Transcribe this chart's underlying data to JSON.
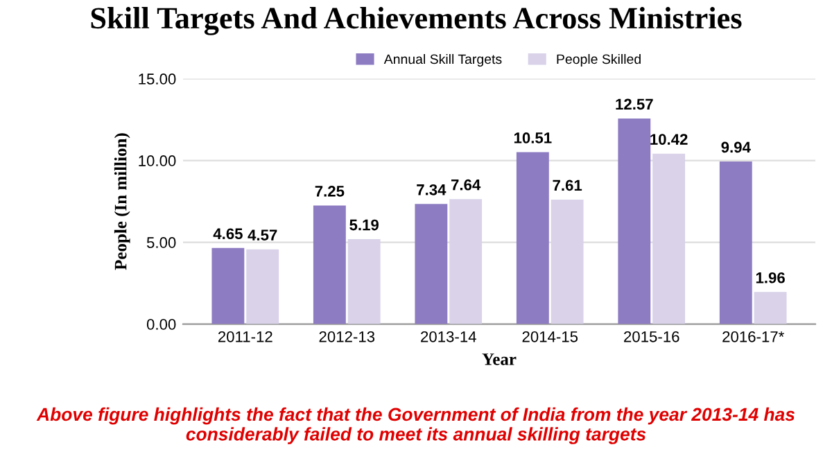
{
  "chart_data": {
    "type": "bar",
    "title": "Skill Targets And Achievements Across Ministries",
    "xlabel": "Year",
    "ylabel": "People (In million)",
    "categories": [
      "2011-12",
      "2012-13",
      "2013-14",
      "2014-15",
      "2015-16",
      "2016-17*"
    ],
    "series": [
      {
        "name": "Annual Skill Targets",
        "color": "#8e7cc3",
        "values": [
          4.65,
          7.25,
          7.34,
          10.51,
          12.57,
          9.94
        ]
      },
      {
        "name": "People Skilled",
        "color": "#d9d2e9",
        "values": [
          4.57,
          5.19,
          7.64,
          7.61,
          10.42,
          1.96
        ]
      }
    ],
    "ylim": [
      0,
      15
    ],
    "yticks": [
      {
        "value": 0,
        "label": "0.00"
      },
      {
        "value": 5,
        "label": "5.00"
      },
      {
        "value": 10,
        "label": "10.00"
      },
      {
        "value": 15,
        "label": "15.00"
      }
    ],
    "grid": "y",
    "legend": "top",
    "data_labels": true,
    "annotations": [
      "Above figure highlights the fact that the Government of India from the year 2013-14 has considerably failed to meet its annual skilling targets"
    ]
  }
}
